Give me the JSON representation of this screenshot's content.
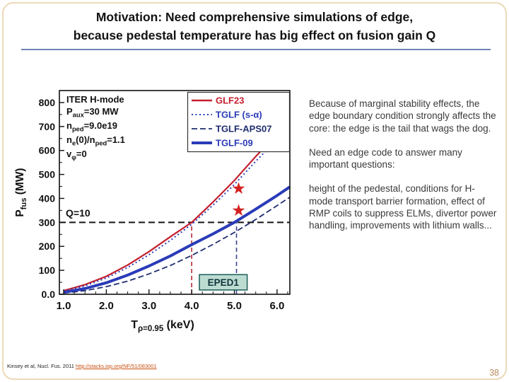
{
  "slide": {
    "title_line1": "Motivation: Need comprehensive simulations of edge,",
    "title_line2": "because pedestal temperature has big effect on fusion gain Q",
    "page_number": "38",
    "citation_text": "Kinsey et al, Nucl. Fus. 2011 ",
    "citation_link": "http://stacks.iop.org/NF/51/083001"
  },
  "right_column": {
    "para1": "Because of marginal stability effects, the edge boundary condition strongly affects the core:  the edge is the tail that wags the dog.",
    "para2": "Need an edge code to answer many important questions:",
    "para3": "height of the pedestal, conditions for H-mode transport barrier formation, effect of RMP coils to suppress ELMs, divertor power handling, improvements with lithium walls..."
  },
  "chart_data": {
    "type": "line",
    "xlabel_segments": [
      {
        "t": "T"
      },
      {
        "sub": "ρ=0.95"
      },
      {
        "t": " (keV)"
      }
    ],
    "ylabel_segments": [
      {
        "t": "P"
      },
      {
        "sub": "fus"
      },
      {
        "t": " (MW)"
      }
    ],
    "xlim": [
      0.9,
      6.3
    ],
    "ylim": [
      0,
      850
    ],
    "xticks": [
      1.0,
      2.0,
      3.0,
      4.0,
      5.0,
      6.0
    ],
    "yticks": [
      0,
      100,
      200,
      300,
      400,
      500,
      600,
      700,
      800
    ],
    "ytick_labels": [
      "0.0",
      "100",
      "200",
      "300",
      "400",
      "500",
      "600",
      "700",
      "800"
    ],
    "grid": false,
    "legend_position": "top-right",
    "series": [
      {
        "name": "GLF23",
        "color": "#c41f2d",
        "width": 2.2,
        "dash": "",
        "points": [
          [
            1.0,
            15
          ],
          [
            1.5,
            40
          ],
          [
            2.0,
            75
          ],
          [
            2.5,
            122
          ],
          [
            3.0,
            178
          ],
          [
            3.5,
            240
          ],
          [
            4.0,
            300
          ],
          [
            4.5,
            385
          ],
          [
            5.0,
            475
          ],
          [
            5.5,
            575
          ],
          [
            6.0,
            670
          ],
          [
            6.3,
            730
          ]
        ]
      },
      {
        "name": "TGLF-s-alpha",
        "color": "#2a3bb8",
        "width": 2,
        "dash": "2 3.5",
        "points": [
          [
            1.0,
            12
          ],
          [
            1.5,
            35
          ],
          [
            2.0,
            68
          ],
          [
            2.5,
            112
          ],
          [
            3.0,
            165
          ],
          [
            3.5,
            225
          ],
          [
            4.0,
            292
          ],
          [
            4.5,
            372
          ],
          [
            5.0,
            458
          ],
          [
            5.5,
            555
          ],
          [
            6.0,
            645
          ],
          [
            6.3,
            705
          ]
        ]
      },
      {
        "name": "TGLF-APS07",
        "color": "#1f2d6e",
        "width": 1.8,
        "dash": "8 4",
        "points": [
          [
            1.0,
            5
          ],
          [
            1.5,
            15
          ],
          [
            2.0,
            32
          ],
          [
            2.5,
            55
          ],
          [
            3.0,
            85
          ],
          [
            3.5,
            120
          ],
          [
            4.0,
            162
          ],
          [
            4.5,
            208
          ],
          [
            5.0,
            258
          ],
          [
            5.5,
            312
          ],
          [
            6.0,
            370
          ],
          [
            6.3,
            405
          ]
        ]
      },
      {
        "name": "TGLF-09",
        "color": "#2a3bb8",
        "width": 4,
        "dash": "",
        "points": [
          [
            1.0,
            8
          ],
          [
            1.5,
            24
          ],
          [
            2.0,
            48
          ],
          [
            2.5,
            80
          ],
          [
            3.0,
            118
          ],
          [
            3.5,
            160
          ],
          [
            4.0,
            207
          ],
          [
            4.5,
            252
          ],
          [
            5.0,
            300
          ],
          [
            5.5,
            355
          ],
          [
            6.0,
            412
          ],
          [
            6.3,
            448
          ]
        ]
      }
    ],
    "legend": [
      {
        "label": "GLF23",
        "color": "#c41f2d",
        "width": 2.5,
        "dash": ""
      },
      {
        "label": "TGLF (s-α)",
        "color": "#2a3bb8",
        "width": 2,
        "dash": "2 3.5"
      },
      {
        "label": "TGLF-APS07",
        "color": "#1f2d6e",
        "width": 1.8,
        "dash": "8 4"
      },
      {
        "label": "TGLF-09",
        "color": "#2a3bb8",
        "width": 4,
        "dash": ""
      }
    ],
    "reference_lines": {
      "q10_y": 300,
      "verticals": [
        {
          "x": 4.0,
          "y_top": 300,
          "color": "#b22a35"
        },
        {
          "x": 5.05,
          "y_top": 300,
          "color": "#3a4490"
        }
      ]
    },
    "stars": [
      {
        "x": 5.1,
        "y": 443
      },
      {
        "x": 5.1,
        "y": 351
      }
    ],
    "star_color": "#d42020",
    "annotation_box": {
      "label": "EPED1",
      "x1": 4.18,
      "x2": 5.3,
      "y1": 18,
      "y2": 82,
      "bg": "#bcdcd2",
      "border": "#25655f"
    },
    "q_label": {
      "text": "Q=10",
      "x": 1.05,
      "y": 325
    },
    "inplot_lines": [
      [
        {
          "t": "ITER H-mode"
        }
      ],
      [
        {
          "t": "P"
        },
        {
          "sub": "aux"
        },
        {
          "t": "=30 MW"
        }
      ],
      [
        {
          "t": "n"
        },
        {
          "sub": "ped"
        },
        {
          "t": "=9.0e19"
        }
      ],
      [
        {
          "t": "n"
        },
        {
          "sub": "e"
        },
        {
          "t": "(0)/n"
        },
        {
          "sub": "ped"
        },
        {
          "t": "=1.1"
        }
      ],
      [
        {
          "t": "v"
        },
        {
          "sub": "φ"
        },
        {
          "t": "=0"
        }
      ]
    ]
  }
}
